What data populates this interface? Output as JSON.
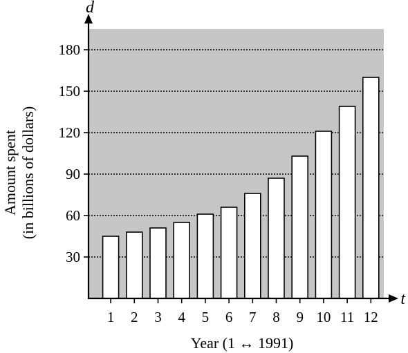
{
  "chart_data": {
    "type": "bar",
    "categories": [
      "1",
      "2",
      "3",
      "4",
      "5",
      "6",
      "7",
      "8",
      "9",
      "10",
      "11",
      "12"
    ],
    "values": [
      45,
      48,
      51,
      55,
      61,
      66,
      76,
      87,
      103,
      121,
      139,
      160
    ],
    "yticks": [
      "30",
      "60",
      "90",
      "120",
      "150",
      "180"
    ],
    "ylim": [
      0,
      195
    ],
    "xlabel": "Year (1 ↔ 1991)",
    "ylabel_line1": "Amount spent",
    "ylabel_line2": "(in billions of dollars)",
    "x_axis_var": "t",
    "y_axis_var": "d",
    "grid": "horizontal dotted",
    "colors": {
      "plot_background": "#c6c6c6",
      "bar_fill": "#ffffff",
      "bar_stroke": "#000000"
    }
  }
}
